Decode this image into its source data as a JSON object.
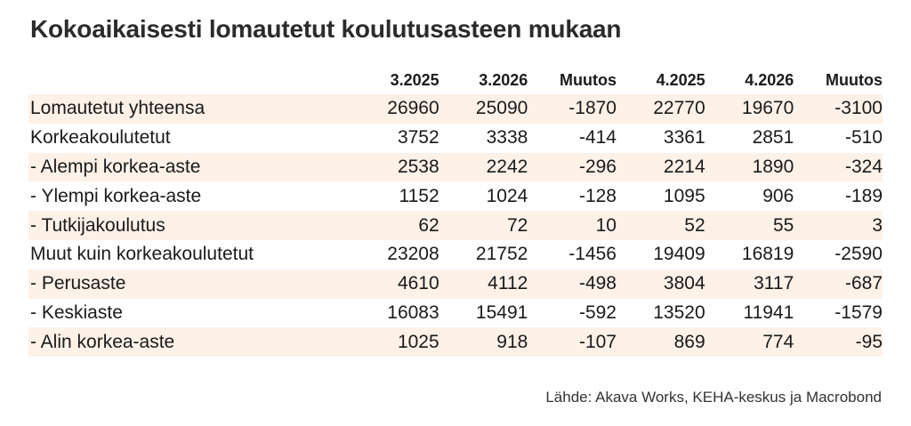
{
  "title": "Kokoaikaisesti lomautetut koulutusasteen mukaan",
  "table": {
    "columns": [
      "",
      "3.2025",
      "3.2026",
      "Muutos",
      "4.2025",
      "4.2026",
      "Muutos"
    ],
    "rows": [
      {
        "label": "Lomautetut yhteensa",
        "values": [
          "26960",
          "25090",
          "-1870",
          "22770",
          "19670",
          "-3100"
        ],
        "shaded": true
      },
      {
        "label": "Korkeakoulutetut",
        "values": [
          "3752",
          "3338",
          "-414",
          "3361",
          "2851",
          "-510"
        ],
        "shaded": false
      },
      {
        "label": "- Alempi korkea-aste",
        "values": [
          "2538",
          "2242",
          "-296",
          "2214",
          "1890",
          "-324"
        ],
        "shaded": true
      },
      {
        "label": "- Ylempi korkea-aste",
        "values": [
          "1152",
          "1024",
          "-128",
          "1095",
          "906",
          "-189"
        ],
        "shaded": false
      },
      {
        "label": "- Tutkijakoulutus",
        "values": [
          "62",
          "72",
          "10",
          "52",
          "55",
          "3"
        ],
        "shaded": true
      },
      {
        "label": "Muut kuin korkeakoulutetut",
        "values": [
          "23208",
          "21752",
          "-1456",
          "19409",
          "16819",
          "-2590"
        ],
        "shaded": false
      },
      {
        "label": "- Perusaste",
        "values": [
          "4610",
          "4112",
          "-498",
          "3804",
          "3117",
          "-687"
        ],
        "shaded": true
      },
      {
        "label": "- Keskiaste",
        "values": [
          "16083",
          "15491",
          "-592",
          "13520",
          "11941",
          "-1579"
        ],
        "shaded": false
      },
      {
        "label": "- Alin korkea-aste",
        "values": [
          "1025",
          "918",
          "-107",
          "869",
          "774",
          "-95"
        ],
        "shaded": true
      }
    ]
  },
  "source": "Lähde: Akava Works, KEHA-keskus ja Macrobond",
  "colors": {
    "row_shading": "#fdf1e8",
    "text": "#1a1a1a",
    "title": "#2b2b2b"
  }
}
